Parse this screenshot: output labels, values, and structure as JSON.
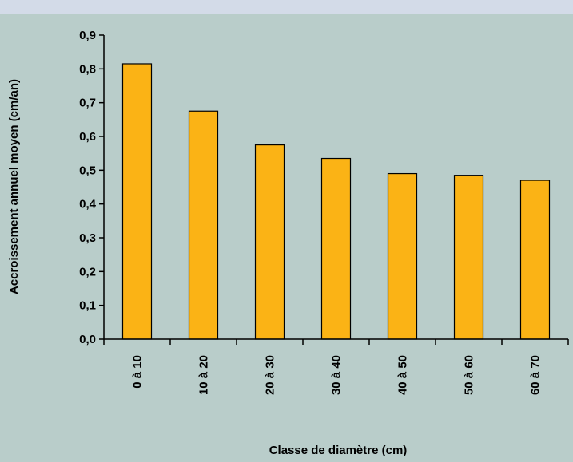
{
  "chart_data": {
    "type": "bar",
    "categories": [
      "0 à 10",
      "10 à 20",
      "20 à 30",
      "30 à 40",
      "40 à 50",
      "50 à 60",
      "60 à 70"
    ],
    "values": [
      0.815,
      0.675,
      0.575,
      0.535,
      0.49,
      0.485,
      0.47
    ],
    "xlabel": "Classe de diamètre (cm)",
    "ylabel": "Accroissement annuel moyen (cm/an)",
    "ylim": [
      0,
      0.9
    ],
    "yticks": [
      "0,0",
      "0,1",
      "0,2",
      "0,3",
      "0,4",
      "0,5",
      "0,6",
      "0,7",
      "0,8",
      "0,9"
    ],
    "grid": false,
    "colors": {
      "bar": "#fbb315",
      "bar_edge": "#000000",
      "background": "#b9cdca",
      "top_band": "#d3dbe8"
    }
  }
}
